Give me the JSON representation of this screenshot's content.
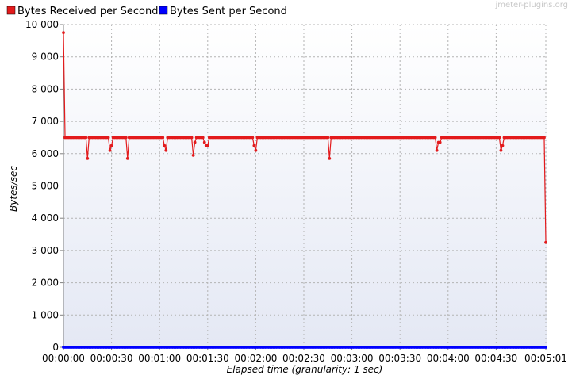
{
  "watermark": "jmeter-plugins.org",
  "chart_data": {
    "type": "line",
    "title": "",
    "xlabel": "Elapsed time (granularity: 1 sec)",
    "ylabel": "Bytes/sec",
    "xlim": [
      "00:00:00",
      "00:05:01"
    ],
    "ylim": [
      0,
      10000
    ],
    "x_unit": "elapsed time (h:mm:ss), one point per second",
    "x_tick_labels": [
      "00:00:00",
      "00:00:30",
      "00:01:00",
      "00:01:30",
      "00:02:00",
      "00:02:30",
      "00:03:00",
      "00:03:30",
      "00:04:00",
      "00:04:30",
      "00:05:01"
    ],
    "y_tick_labels": [
      "0",
      "1 000",
      "2 000",
      "3 000",
      "4 000",
      "5 000",
      "6 000",
      "7 000",
      "8 000",
      "9 000",
      "10 000"
    ],
    "grid": true,
    "legend_position": "top-left",
    "series": [
      {
        "name": "Bytes Received per Second",
        "color": "#e31a1c",
        "baseline": 6500,
        "x_range": [
          "00:00:00",
          "00:05:01"
        ],
        "points": [
          [
            "00:00:00",
            9750
          ],
          [
            "00:00:01",
            6500
          ],
          [
            "00:00:14",
            6500
          ],
          [
            "00:00:15",
            5850
          ],
          [
            "00:00:16",
            6500
          ],
          [
            "00:00:28",
            6500
          ],
          [
            "00:00:29",
            6100
          ],
          [
            "00:00:30",
            6250
          ],
          [
            "00:00:31",
            6500
          ],
          [
            "00:00:39",
            6500
          ],
          [
            "00:00:40",
            5850
          ],
          [
            "00:00:41",
            6500
          ],
          [
            "00:01:02",
            6500
          ],
          [
            "00:01:03",
            6250
          ],
          [
            "00:01:04",
            6100
          ],
          [
            "00:01:05",
            6500
          ],
          [
            "00:01:20",
            6500
          ],
          [
            "00:01:21",
            5950
          ],
          [
            "00:01:22",
            6350
          ],
          [
            "00:01:23",
            6500
          ],
          [
            "00:01:27",
            6500
          ],
          [
            "00:01:28",
            6350
          ],
          [
            "00:01:29",
            6250
          ],
          [
            "00:01:30",
            6250
          ],
          [
            "00:01:31",
            6500
          ],
          [
            "00:01:58",
            6500
          ],
          [
            "00:01:59",
            6250
          ],
          [
            "00:02:00",
            6100
          ],
          [
            "00:02:01",
            6500
          ],
          [
            "00:02:45",
            6500
          ],
          [
            "00:02:46",
            5850
          ],
          [
            "00:02:47",
            6500
          ],
          [
            "00:03:52",
            6500
          ],
          [
            "00:03:53",
            6100
          ],
          [
            "00:03:54",
            6350
          ],
          [
            "00:03:55",
            6350
          ],
          [
            "00:03:56",
            6500
          ],
          [
            "00:04:32",
            6500
          ],
          [
            "00:04:33",
            6100
          ],
          [
            "00:04:34",
            6250
          ],
          [
            "00:04:35",
            6500
          ],
          [
            "00:05:00",
            6500
          ],
          [
            "00:05:01",
            3250
          ]
        ]
      },
      {
        "name": "Bytes Sent per Second",
        "color": "#0000ff",
        "baseline": 0,
        "x_range": [
          "00:00:00",
          "00:05:01"
        ],
        "points": []
      }
    ]
  }
}
